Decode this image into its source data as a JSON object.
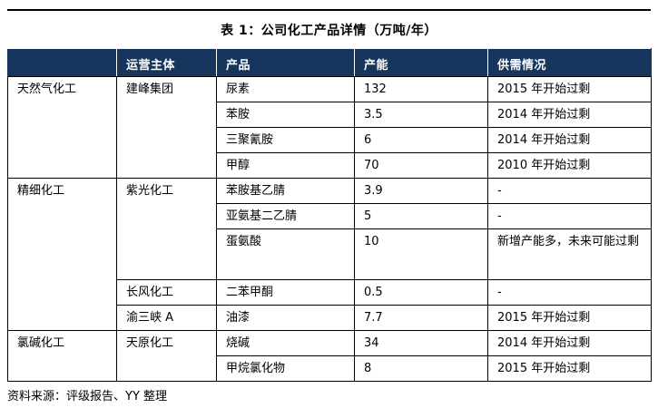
{
  "title": "表 1：公司化工产品详情（万吨/年）",
  "source": "资料来源：评级报告、YY 整理",
  "colors": {
    "header_bg": "#17365D",
    "header_fg": "#ffffff",
    "border": "#000000",
    "text": "#000000",
    "page_bg": "#ffffff"
  },
  "table": {
    "columns": [
      "",
      "运营主体",
      "产品",
      "产能",
      "供需情况"
    ],
    "groups": [
      {
        "category": "天然气化工",
        "operators": [
          {
            "name": "建峰集团",
            "products": [
              {
                "product": "尿素",
                "capacity": "132",
                "supply": "2015 年开始过剩"
              },
              {
                "product": "苯胺",
                "capacity": "3.5",
                "supply": "2014 年开始过剩"
              },
              {
                "product": "三聚氰胺",
                "capacity": "6",
                "supply": "2014 年开始过剩"
              },
              {
                "product": "甲醇",
                "capacity": "70",
                "supply": "2010 年开始过剩"
              }
            ]
          }
        ]
      },
      {
        "category": "精细化工",
        "operators": [
          {
            "name": "紫光化工",
            "products": [
              {
                "product": "苯胺基乙腈",
                "capacity": "3.9",
                "supply": "-"
              },
              {
                "product": "亚氨基二乙腈",
                "capacity": "5",
                "supply": "-"
              },
              {
                "product": "蛋氨酸",
                "capacity": "10",
                "supply": "新增产能多，未来可能过剩",
                "tall": true
              }
            ]
          },
          {
            "name": "长风化工",
            "products": [
              {
                "product": "二苯甲酮",
                "capacity": "0.5",
                "supply": "-"
              }
            ]
          },
          {
            "name": "渝三峡 A",
            "products": [
              {
                "product": "油漆",
                "capacity": "7.7",
                "supply": "2015 年开始过剩"
              }
            ]
          }
        ]
      },
      {
        "category": "氯碱化工",
        "operators": [
          {
            "name": "天原化工",
            "products": [
              {
                "product": "烧碱",
                "capacity": "34",
                "supply": "2014 年开始过剩"
              },
              {
                "product": "甲烷氯化物",
                "capacity": "8",
                "supply": "2015 年开始过剩"
              }
            ]
          }
        ]
      }
    ]
  }
}
